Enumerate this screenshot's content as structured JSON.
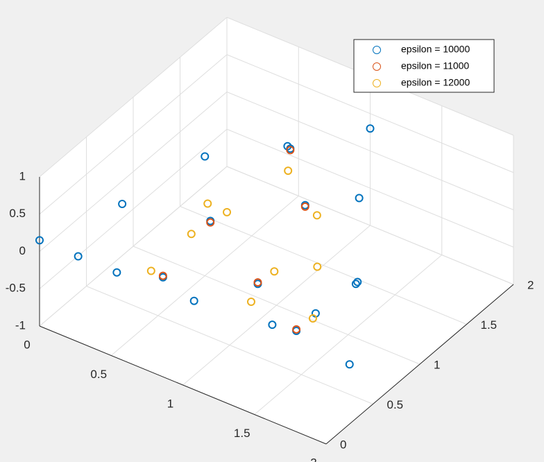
{
  "chart_data": {
    "type": "scatter3d",
    "xlim": [
      0,
      2
    ],
    "ylim": [
      0,
      2
    ],
    "zlim": [
      -1,
      1
    ],
    "xticks": [
      0,
      0.5,
      1,
      1.5,
      2
    ],
    "yticks": [
      0,
      0.5,
      1,
      1.5,
      2
    ],
    "zticks": [
      -1,
      -0.5,
      0,
      0.5,
      1
    ],
    "grid": true,
    "legend_position": "northeast",
    "series": [
      {
        "name": "epsilon = 10000",
        "color": "#0072bd",
        "x": [
          0,
          0.25,
          0.5,
          1,
          1.5,
          2,
          0.25,
          0.5,
          0.75,
          1,
          1.75,
          1.5,
          1.25,
          0.8,
          1,
          1.2,
          1.4,
          0.6,
          0.9,
          1.6
        ],
        "y": [
          0,
          0.03,
          0.06,
          0.12,
          0.19,
          0.25,
          0.5,
          1,
          1.5,
          2,
          0.7,
          1.1,
          1.5,
          0.6,
          0.8,
          1,
          0.6,
          0.4,
          1.3,
          0.5
        ],
        "z": [
          0.15,
          0.1,
          0.05,
          0,
          0,
          -0.2,
          0.3,
          0.6,
          0.4,
          0.3,
          0.2,
          -0.4,
          0.1,
          0.4,
          -0.5,
          0.5,
          -0.6,
          -0.3,
          0.7,
          -0.1
        ]
      },
      {
        "name": "epsilon = 11000",
        "color": "#d95319",
        "x": [
          0.8,
          1,
          1.2,
          1.4,
          0.6,
          0.9
        ],
        "y": [
          0.6,
          0.8,
          1,
          0.6,
          0.4,
          1.3
        ],
        "z": [
          0.38,
          -0.48,
          0.48,
          -0.58,
          -0.28,
          0.68
        ]
      },
      {
        "name": "epsilon = 12000",
        "color": "#edb120",
        "x": [
          0.7,
          0.85,
          1.05,
          1.25,
          1.45,
          0.55,
          0.95,
          1.15,
          0.65,
          1.35
        ],
        "y": [
          0.55,
          0.7,
          0.9,
          1.05,
          0.7,
          0.35,
          1.2,
          0.5,
          0.8,
          0.9
        ],
        "z": [
          0.2,
          0.45,
          -0.4,
          0.35,
          -0.5,
          -0.2,
          0.55,
          -0.3,
          0.3,
          -0.1
        ]
      }
    ]
  }
}
